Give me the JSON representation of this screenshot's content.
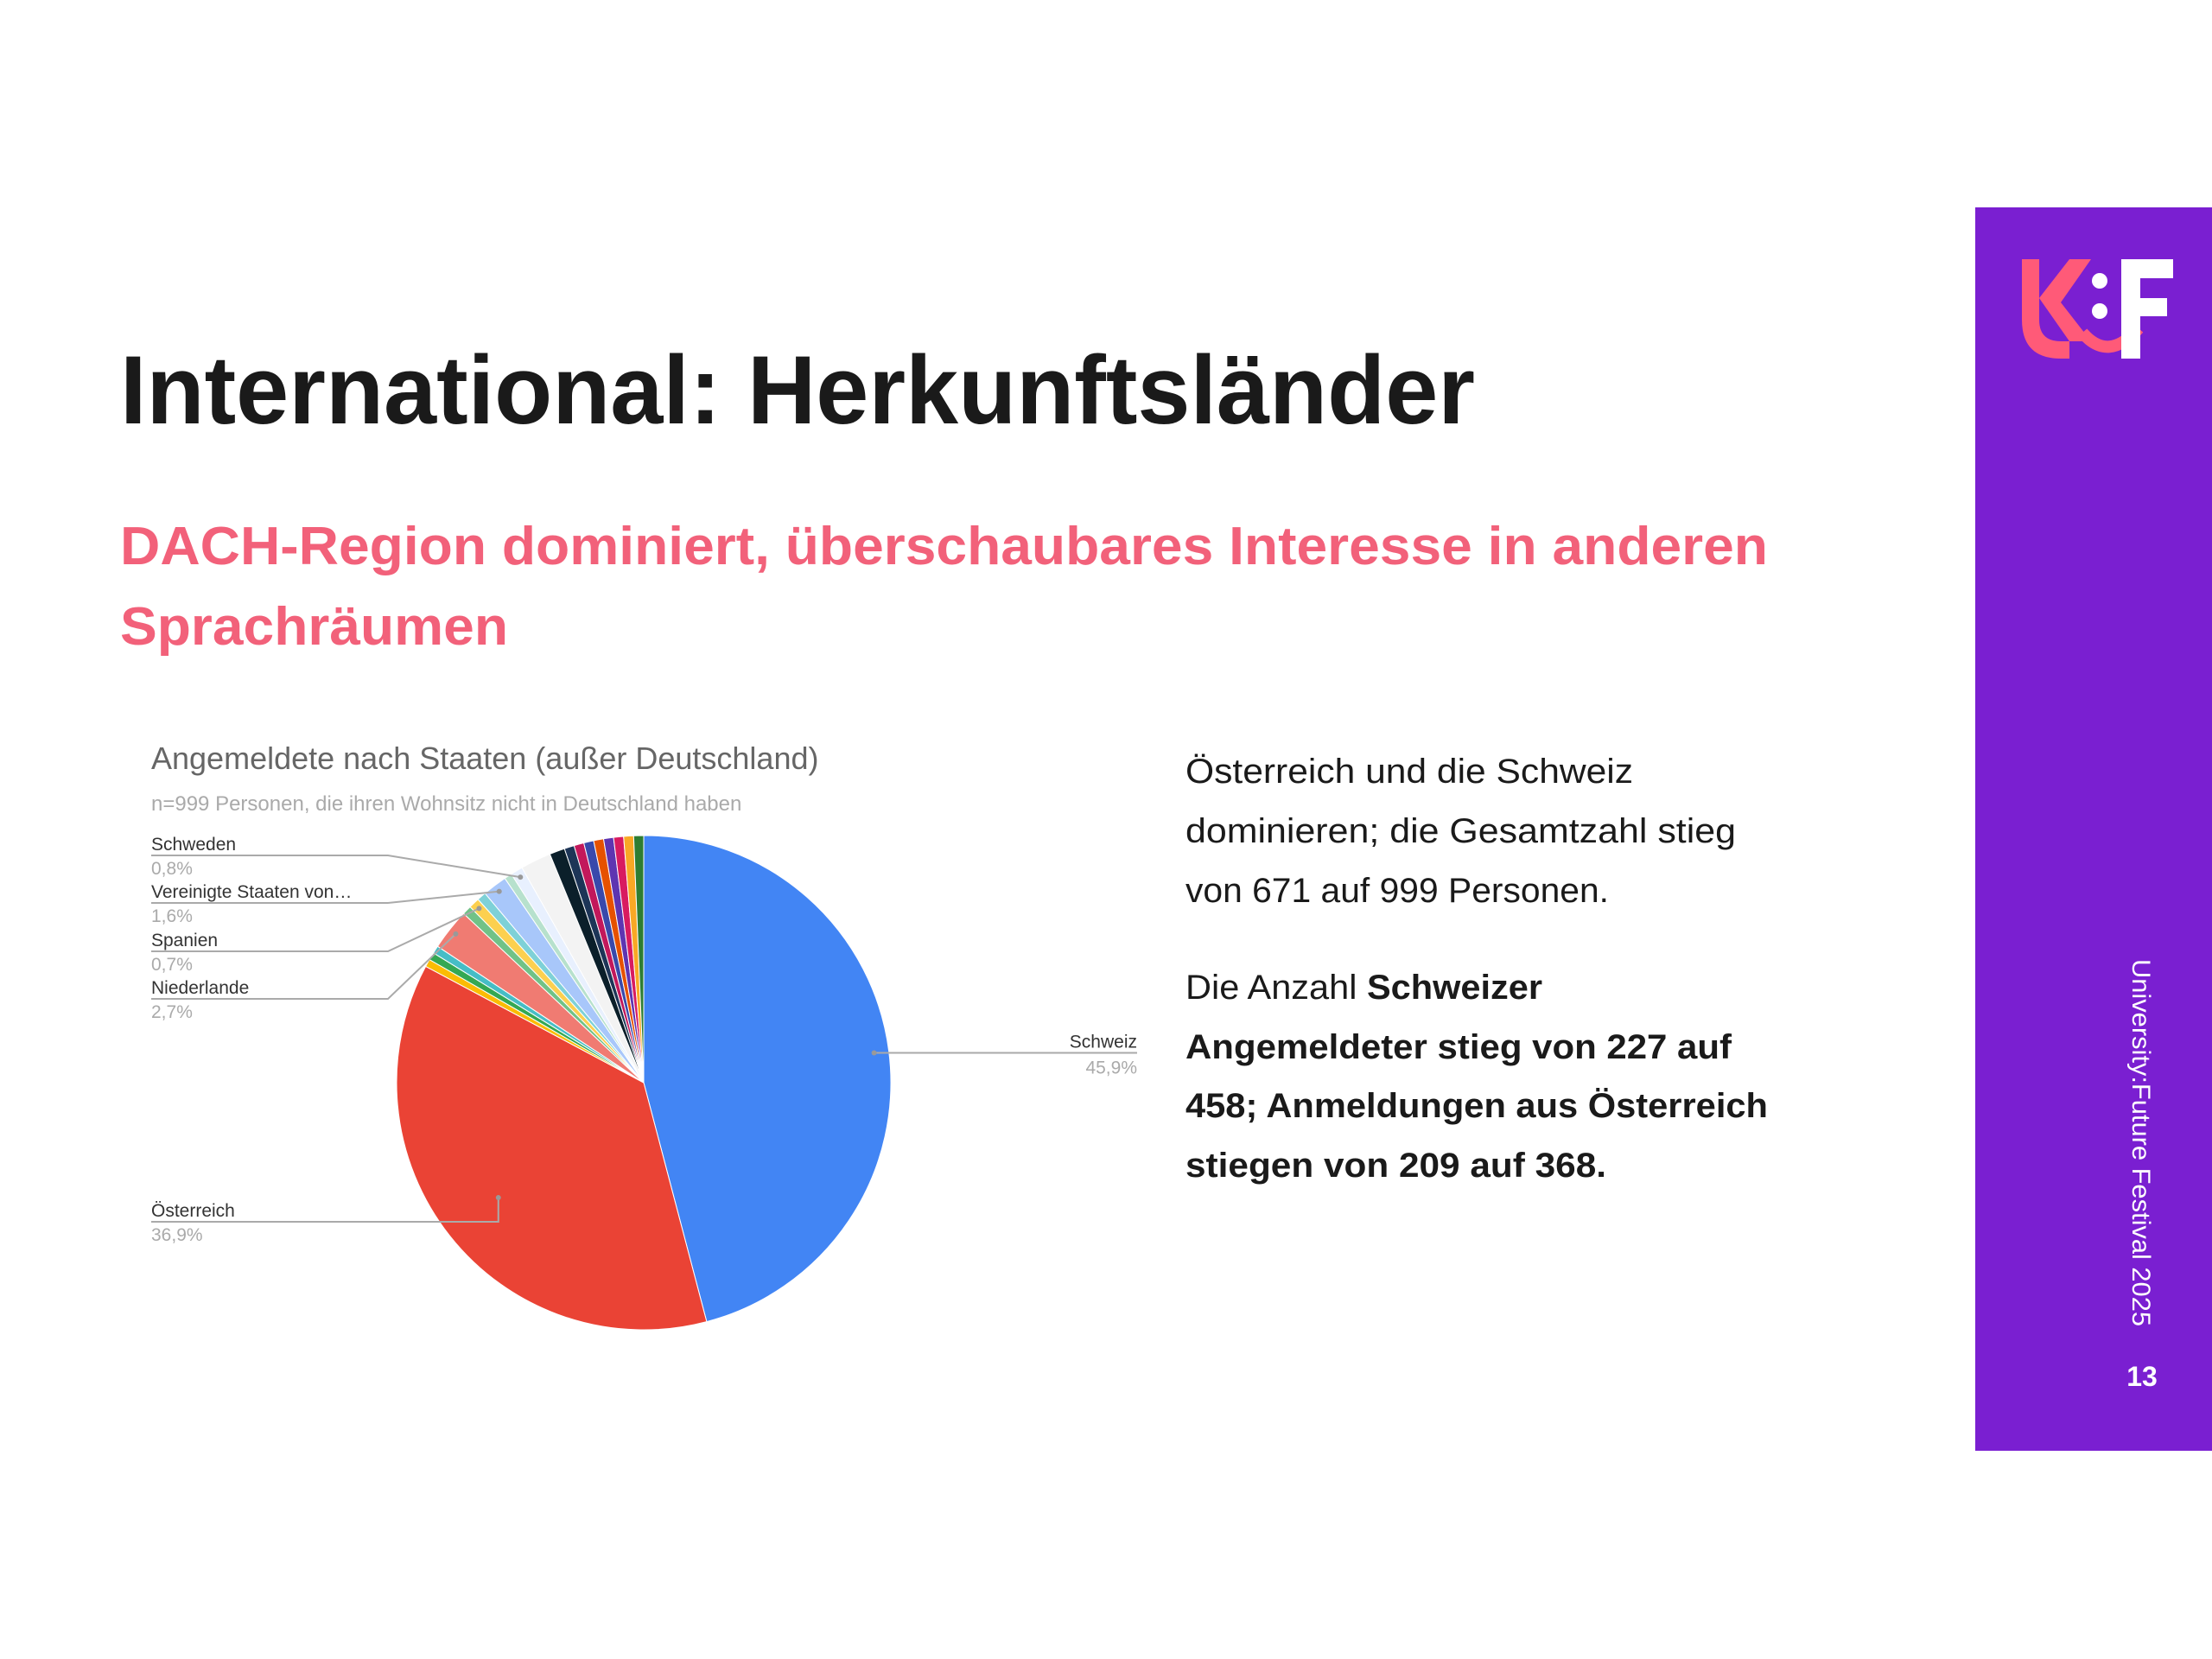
{
  "title": "International: Herkunftsländer",
  "subtitle": [
    "DACH-Region dominiert, überschaubares Interesse in anderen",
    "Sprachräumen"
  ],
  "chart_data": {
    "type": "pie",
    "title": "Angemeldete nach Staaten (außer Deutschland)",
    "subtitle": "n=999 Personen, die ihren Wohnsitz nicht in Deutschland haben",
    "categories": [
      "Schweiz",
      "Österreich",
      null,
      null,
      null,
      "Niederlande",
      null,
      "Spanien",
      null,
      "Vereinigte Staaten von…",
      null,
      "Schweden",
      null,
      null,
      null,
      null,
      null,
      null,
      null,
      null,
      null,
      null
    ],
    "values": [
      45.9,
      36.9,
      0.5,
      0.5,
      0.5,
      2.7,
      0.6,
      0.7,
      0.6,
      1.6,
      0.5,
      0.8,
      2.0,
      1.0,
      0.65,
      0.65,
      0.65,
      0.65,
      0.65,
      0.65,
      0.65,
      0.65
    ],
    "value_labels": [
      "45,9%",
      "36,9%",
      null,
      null,
      null,
      "2,7%",
      null,
      "0,7%",
      null,
      "1,6%",
      null,
      "0,8%",
      null,
      null,
      null,
      null,
      null,
      null,
      null,
      null,
      null,
      null
    ],
    "colors": [
      "#4285f4",
      "#ea4335",
      "#fbbc04",
      "#34a853",
      "#46bdc6",
      "#f07b72",
      "#71c287",
      "#fcd04f",
      "#7ed1d7",
      "#a8c7fa",
      "#b7e1cd",
      "#e8f0fe",
      "#f3f3f3",
      "#0b1f2a",
      "#1d3557",
      "#c2185b",
      "#3949ab",
      "#e65100",
      "#5e35b1",
      "#d81b60",
      "#f9a825",
      "#2e7d32"
    ]
  },
  "text_block": {
    "p1": [
      "Österreich und die Schweiz",
      "dominieren; die Gesamtzahl stieg",
      "von 671 auf 999 Personen."
    ],
    "p2_normal": "Die Anzahl",
    "p2_bold": [
      "Schweizer",
      "Angemeldeter stieg von 227 auf",
      "458; Anmeldungen aus Österreich",
      "stiegen von 209 auf 368."
    ]
  },
  "sidebar": {
    "footer": "University:Future Festival 2025",
    "page_number": "13"
  }
}
